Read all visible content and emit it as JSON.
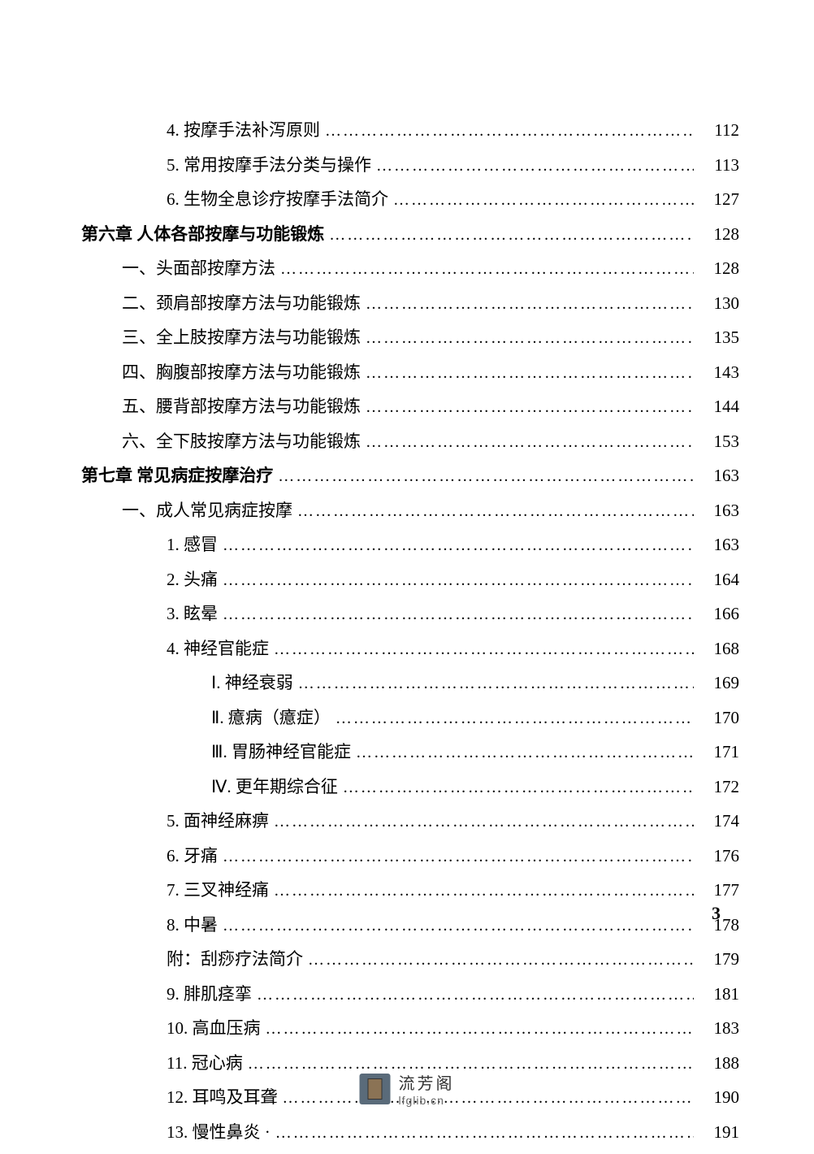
{
  "text_color": "#000000",
  "background_color": "#ffffff",
  "font_family": "SimSun",
  "base_font_size": 21,
  "dots": "…………………………………………………………………………",
  "entries": [
    {
      "indent": 2,
      "label": "4. 按摩手法补泻原则",
      "page": "112",
      "bold": false
    },
    {
      "indent": 2,
      "label": "5. 常用按摩手法分类与操作",
      "page": "113",
      "bold": false
    },
    {
      "indent": 2,
      "label": "6. 生物全息诊疗按摩手法简介",
      "page": "127",
      "bold": false
    },
    {
      "indent": 0,
      "label": "第六章  人体各部按摩与功能锻炼 ",
      "page": "128",
      "bold": true
    },
    {
      "indent": 1,
      "label": "一、头面部按摩方法 ",
      "page": "128",
      "bold": false
    },
    {
      "indent": 1,
      "label": "二、颈肩部按摩方法与功能锻炼 ",
      "page": "130",
      "bold": false
    },
    {
      "indent": 1,
      "label": "三、全上肢按摩方法与功能锻炼 ",
      "page": "135",
      "bold": false
    },
    {
      "indent": 1,
      "label": "四、胸腹部按摩方法与功能锻炼 ",
      "page": "143",
      "bold": false
    },
    {
      "indent": 1,
      "label": "五、腰背部按摩方法与功能锻炼 ",
      "page": "144",
      "bold": false
    },
    {
      "indent": 1,
      "label": "六、全下肢按摩方法与功能锻炼 ",
      "page": "153",
      "bold": false
    },
    {
      "indent": 0,
      "label": "第七章  常见病症按摩治疗 ",
      "page": "163",
      "bold": true
    },
    {
      "indent": 1,
      "label": "一、成人常见病症按摩 ",
      "page": "163",
      "bold": false
    },
    {
      "indent": 2,
      "label": "1. 感冒 ",
      "page": "163",
      "bold": false
    },
    {
      "indent": 2,
      "label": "2. 头痛",
      "page": "164",
      "bold": false
    },
    {
      "indent": 2,
      "label": "3. 眩晕",
      "page": "166",
      "bold": false
    },
    {
      "indent": 2,
      "label": "4. 神经官能症",
      "page": "168",
      "bold": false
    },
    {
      "indent": 3,
      "label": "Ⅰ. 神经衰弱",
      "page": "169",
      "bold": false
    },
    {
      "indent": 3,
      "label": "Ⅱ. 癔病（癔症）",
      "page": "170",
      "bold": false
    },
    {
      "indent": 3,
      "label": "Ⅲ. 胃肠神经官能症",
      "page": "171",
      "bold": false
    },
    {
      "indent": 3,
      "label": "Ⅳ. 更年期综合征",
      "page": "172",
      "bold": false
    },
    {
      "indent": 2,
      "label": "5. 面神经麻痹",
      "page": "174",
      "bold": false
    },
    {
      "indent": 2,
      "label": "6. 牙痛",
      "page": "176",
      "bold": false
    },
    {
      "indent": 2,
      "label": "7. 三叉神经痛",
      "page": "177",
      "bold": false
    },
    {
      "indent": 2,
      "label": "8. 中暑",
      "page": "178",
      "bold": false
    },
    {
      "indent": 2,
      "label": "附：刮痧疗法简介 ",
      "page": "179",
      "bold": false
    },
    {
      "indent": 2,
      "label": "9. 腓肌痉挛",
      "page": "181",
      "bold": false
    },
    {
      "indent": 2,
      "label": "10. 高血压病 ",
      "page": "183",
      "bold": false
    },
    {
      "indent": 2,
      "label": "11. 冠心病 ",
      "page": "188",
      "bold": false
    },
    {
      "indent": 2,
      "label": "12. 耳鸣及耳聋 ",
      "page": "190",
      "bold": false
    },
    {
      "indent": 2,
      "label": "13. 慢性鼻炎 · ",
      "page": "191",
      "bold": false
    }
  ],
  "page_number": "3",
  "watermark": {
    "cn": "流芳阁",
    "en": "lfglib.cn",
    "icon_bg": "#5a6b7a",
    "icon_inner": "#8b7355"
  }
}
